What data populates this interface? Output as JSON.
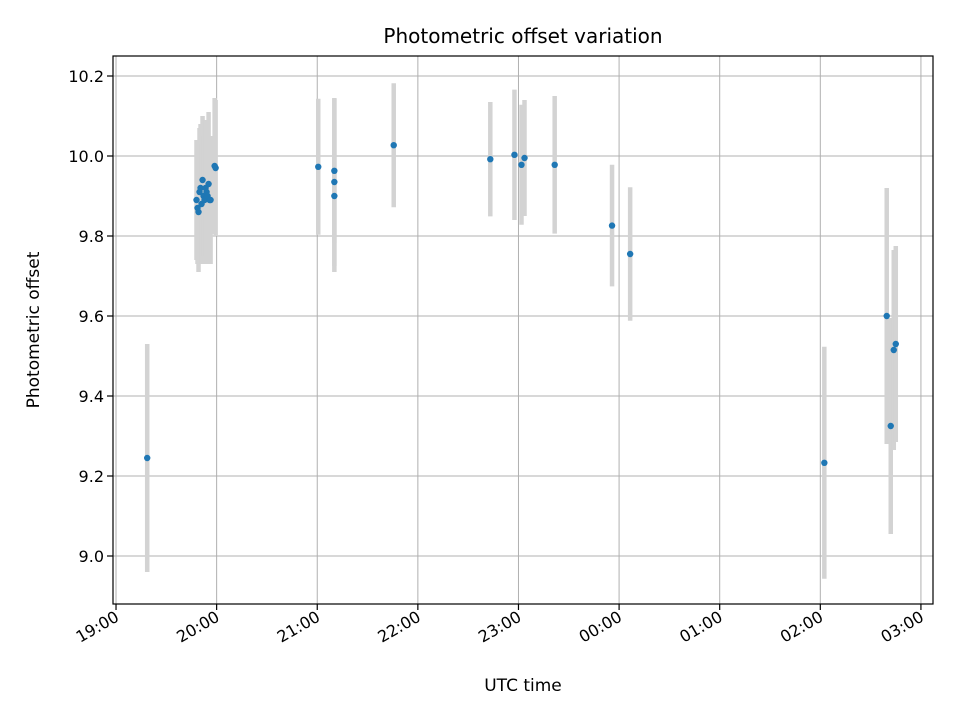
{
  "chart_data": {
    "type": "scatter",
    "title": "Photometric offset variation",
    "xlabel": "UTC time",
    "ylabel": "Photometric offset",
    "x_unit": "hours since 19:00 UTC",
    "xlim": [
      -0.03,
      8.12
    ],
    "ylim": [
      8.88,
      10.25
    ],
    "grid": true,
    "x_tick_values": [
      0,
      1,
      2,
      3,
      4,
      5,
      6,
      7,
      8
    ],
    "x_tick_labels": [
      "19:00",
      "20:00",
      "21:00",
      "22:00",
      "23:00",
      "00:00",
      "01:00",
      "02:00",
      "03:00"
    ],
    "y_tick_values": [
      9.0,
      9.2,
      9.4,
      9.6,
      9.8,
      10.0,
      10.2
    ],
    "y_tick_labels": [
      "9.0",
      "9.2",
      "9.4",
      "9.6",
      "9.8",
      "10.0",
      "10.2"
    ],
    "point_color": "#1f77b4",
    "errorbar_color": "#d3d3d3",
    "series": [
      {
        "points": [
          {
            "x": 0.31,
            "y": 9.245,
            "err": 0.285
          },
          {
            "x": 0.8,
            "y": 9.89,
            "err": 0.15
          },
          {
            "x": 0.81,
            "y": 9.87,
            "err": 0.14
          },
          {
            "x": 0.82,
            "y": 9.86,
            "err": 0.15
          },
          {
            "x": 0.83,
            "y": 9.91,
            "err": 0.16
          },
          {
            "x": 0.84,
            "y": 9.92,
            "err": 0.16
          },
          {
            "x": 0.85,
            "y": 9.88,
            "err": 0.15
          },
          {
            "x": 0.86,
            "y": 9.94,
            "err": 0.16
          },
          {
            "x": 0.87,
            "y": 9.9,
            "err": 0.15
          },
          {
            "x": 0.88,
            "y": 9.89,
            "err": 0.16
          },
          {
            "x": 0.89,
            "y": 9.92,
            "err": 0.17
          },
          {
            "x": 0.9,
            "y": 9.91,
            "err": 0.16
          },
          {
            "x": 0.91,
            "y": 9.9,
            "err": 0.17
          },
          {
            "x": 0.92,
            "y": 9.93,
            "err": 0.18
          },
          {
            "x": 0.93,
            "y": 9.89,
            "err": 0.15
          },
          {
            "x": 0.94,
            "y": 9.89,
            "err": 0.16
          },
          {
            "x": 0.98,
            "y": 9.975,
            "err": 0.17
          },
          {
            "x": 0.99,
            "y": 9.97,
            "err": 0.17
          },
          {
            "x": 2.01,
            "y": 9.973,
            "err": 0.17
          },
          {
            "x": 2.17,
            "y": 9.963,
            "err": 0.18
          },
          {
            "x": 2.17,
            "y": 9.935,
            "err": 0.21
          },
          {
            "x": 2.17,
            "y": 9.9,
            "err": 0.19
          },
          {
            "x": 2.76,
            "y": 10.027,
            "err": 0.155
          },
          {
            "x": 3.72,
            "y": 9.992,
            "err": 0.143
          },
          {
            "x": 3.96,
            "y": 10.003,
            "err": 0.163
          },
          {
            "x": 4.03,
            "y": 9.978,
            "err": 0.15
          },
          {
            "x": 4.06,
            "y": 9.995,
            "err": 0.145
          },
          {
            "x": 4.36,
            "y": 9.978,
            "err": 0.172
          },
          {
            "x": 4.93,
            "y": 9.826,
            "err": 0.152
          },
          {
            "x": 5.11,
            "y": 9.755,
            "err": 0.167
          },
          {
            "x": 7.04,
            "y": 9.233,
            "err": 0.29
          },
          {
            "x": 7.66,
            "y": 9.6,
            "err": 0.32
          },
          {
            "x": 7.7,
            "y": 9.325,
            "err": 0.27
          },
          {
            "x": 7.73,
            "y": 9.515,
            "err": 0.25
          },
          {
            "x": 7.75,
            "y": 9.53,
            "err": 0.245
          }
        ]
      }
    ]
  }
}
